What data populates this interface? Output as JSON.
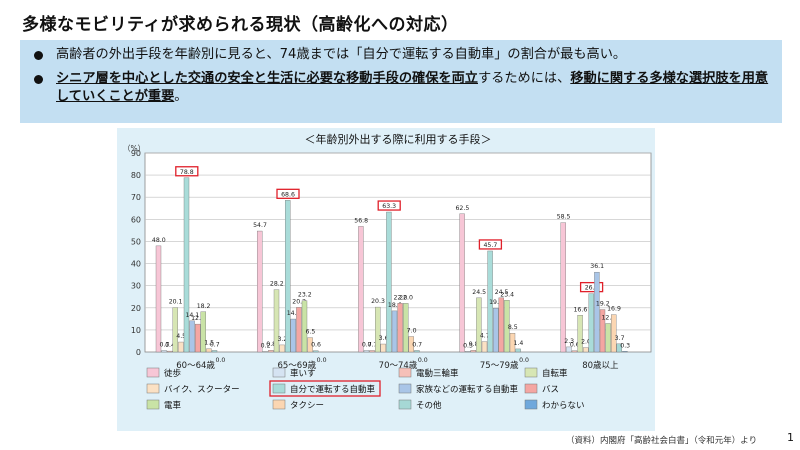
{
  "slide": {
    "title": "多様なモビリティが求められる現状（高齢化への対応）",
    "bullets": [
      {
        "segments": [
          {
            "text": "高齢者の外出手段を年齢別に見ると、74歳までは「自分で運転する自動車」の割合が最も高い。",
            "bold": false
          }
        ]
      },
      {
        "segments": [
          {
            "text": "シニア層を中心とした交通の安全と生活に必要な移動手段の確保を両立",
            "bold": true
          },
          {
            "text": "するためには、",
            "bold": false
          },
          {
            "text": "移動に関する多様な選択肢を用意していくことが重要",
            "bold": true
          },
          {
            "text": "。",
            "bold": false
          }
        ]
      }
    ],
    "footer": "（資料）内閣府「高齢社会白書」（令和元年）より",
    "page_number": "1"
  },
  "chart_data": {
    "type": "bar",
    "title": "＜年齢別外出する際に利用する手段＞",
    "ylabel": "（%）",
    "ylim": [
      0,
      90
    ],
    "yticks": [
      0,
      10,
      20,
      30,
      40,
      50,
      60,
      70,
      80,
      90
    ],
    "categories": [
      "60～64歳",
      "65～69歳",
      "70～74歳",
      "75～79歳",
      "80歳以上"
    ],
    "series": [
      {
        "name": "徒歩",
        "color": "#f7c6d6",
        "values": [
          48.0,
          54.7,
          56.8,
          62.5,
          58.5
        ]
      },
      {
        "name": "車いす",
        "color": "#d5e3f2",
        "values": [
          0.7,
          0.2,
          0.7,
          0.3,
          2.3
        ]
      },
      {
        "name": "電動三輪車",
        "color": "#f6c0b8",
        "values": [
          0.4,
          0.8,
          0.7,
          0.8,
          0.6
        ]
      },
      {
        "name": "自転車",
        "color": "#d7e6b4",
        "values": [
          20.1,
          28.2,
          20.3,
          24.5,
          16.6
        ]
      },
      {
        "name": "バイク、スクーター",
        "color": "#fbe1c4",
        "values": [
          4.5,
          3.2,
          3.6,
          4.7,
          2.0
        ]
      },
      {
        "name": "自分で運転する自動車",
        "color": "#a9dcd9",
        "values": [
          78.8,
          68.6,
          63.3,
          45.7,
          26.4
        ]
      },
      {
        "name": "家族などの運転する自動車",
        "color": "#a9c5e7",
        "values": [
          14.1,
          14.9,
          18.6,
          19.8,
          36.1
        ]
      },
      {
        "name": "バス",
        "color": "#f4a6a2",
        "values": [
          12.6,
          20.2,
          22.0,
          24.5,
          19.2
        ]
      },
      {
        "name": "電車",
        "color": "#c9e3a6",
        "values": [
          18.2,
          23.2,
          22.0,
          23.4,
          12.9
        ]
      },
      {
        "name": "タクシー",
        "color": "#fbd6b2",
        "values": [
          1.5,
          6.5,
          7.0,
          8.5,
          16.9
        ]
      },
      {
        "name": "その他",
        "color": "#a6d8d5",
        "values": [
          0.7,
          0.6,
          0.7,
          1.4,
          3.7
        ]
      },
      {
        "name": "わからない",
        "color": "#6fa8dc",
        "values": [
          0.0,
          0.0,
          0.0,
          0.0,
          0.3
        ]
      }
    ],
    "highlighted_series": "自分で運転する自動車",
    "highlight_color": "#e0202a",
    "legend": [
      [
        "徒歩",
        "車いす",
        "電動三輪車",
        "自転車"
      ],
      [
        "バイク、スクーター",
        "自分で運転する自動車",
        "家族などの運転する自動車",
        "バス"
      ],
      [
        "電車",
        "タクシー",
        "その他",
        "わからない"
      ]
    ],
    "legend_placement": "bottom",
    "grid": true
  }
}
